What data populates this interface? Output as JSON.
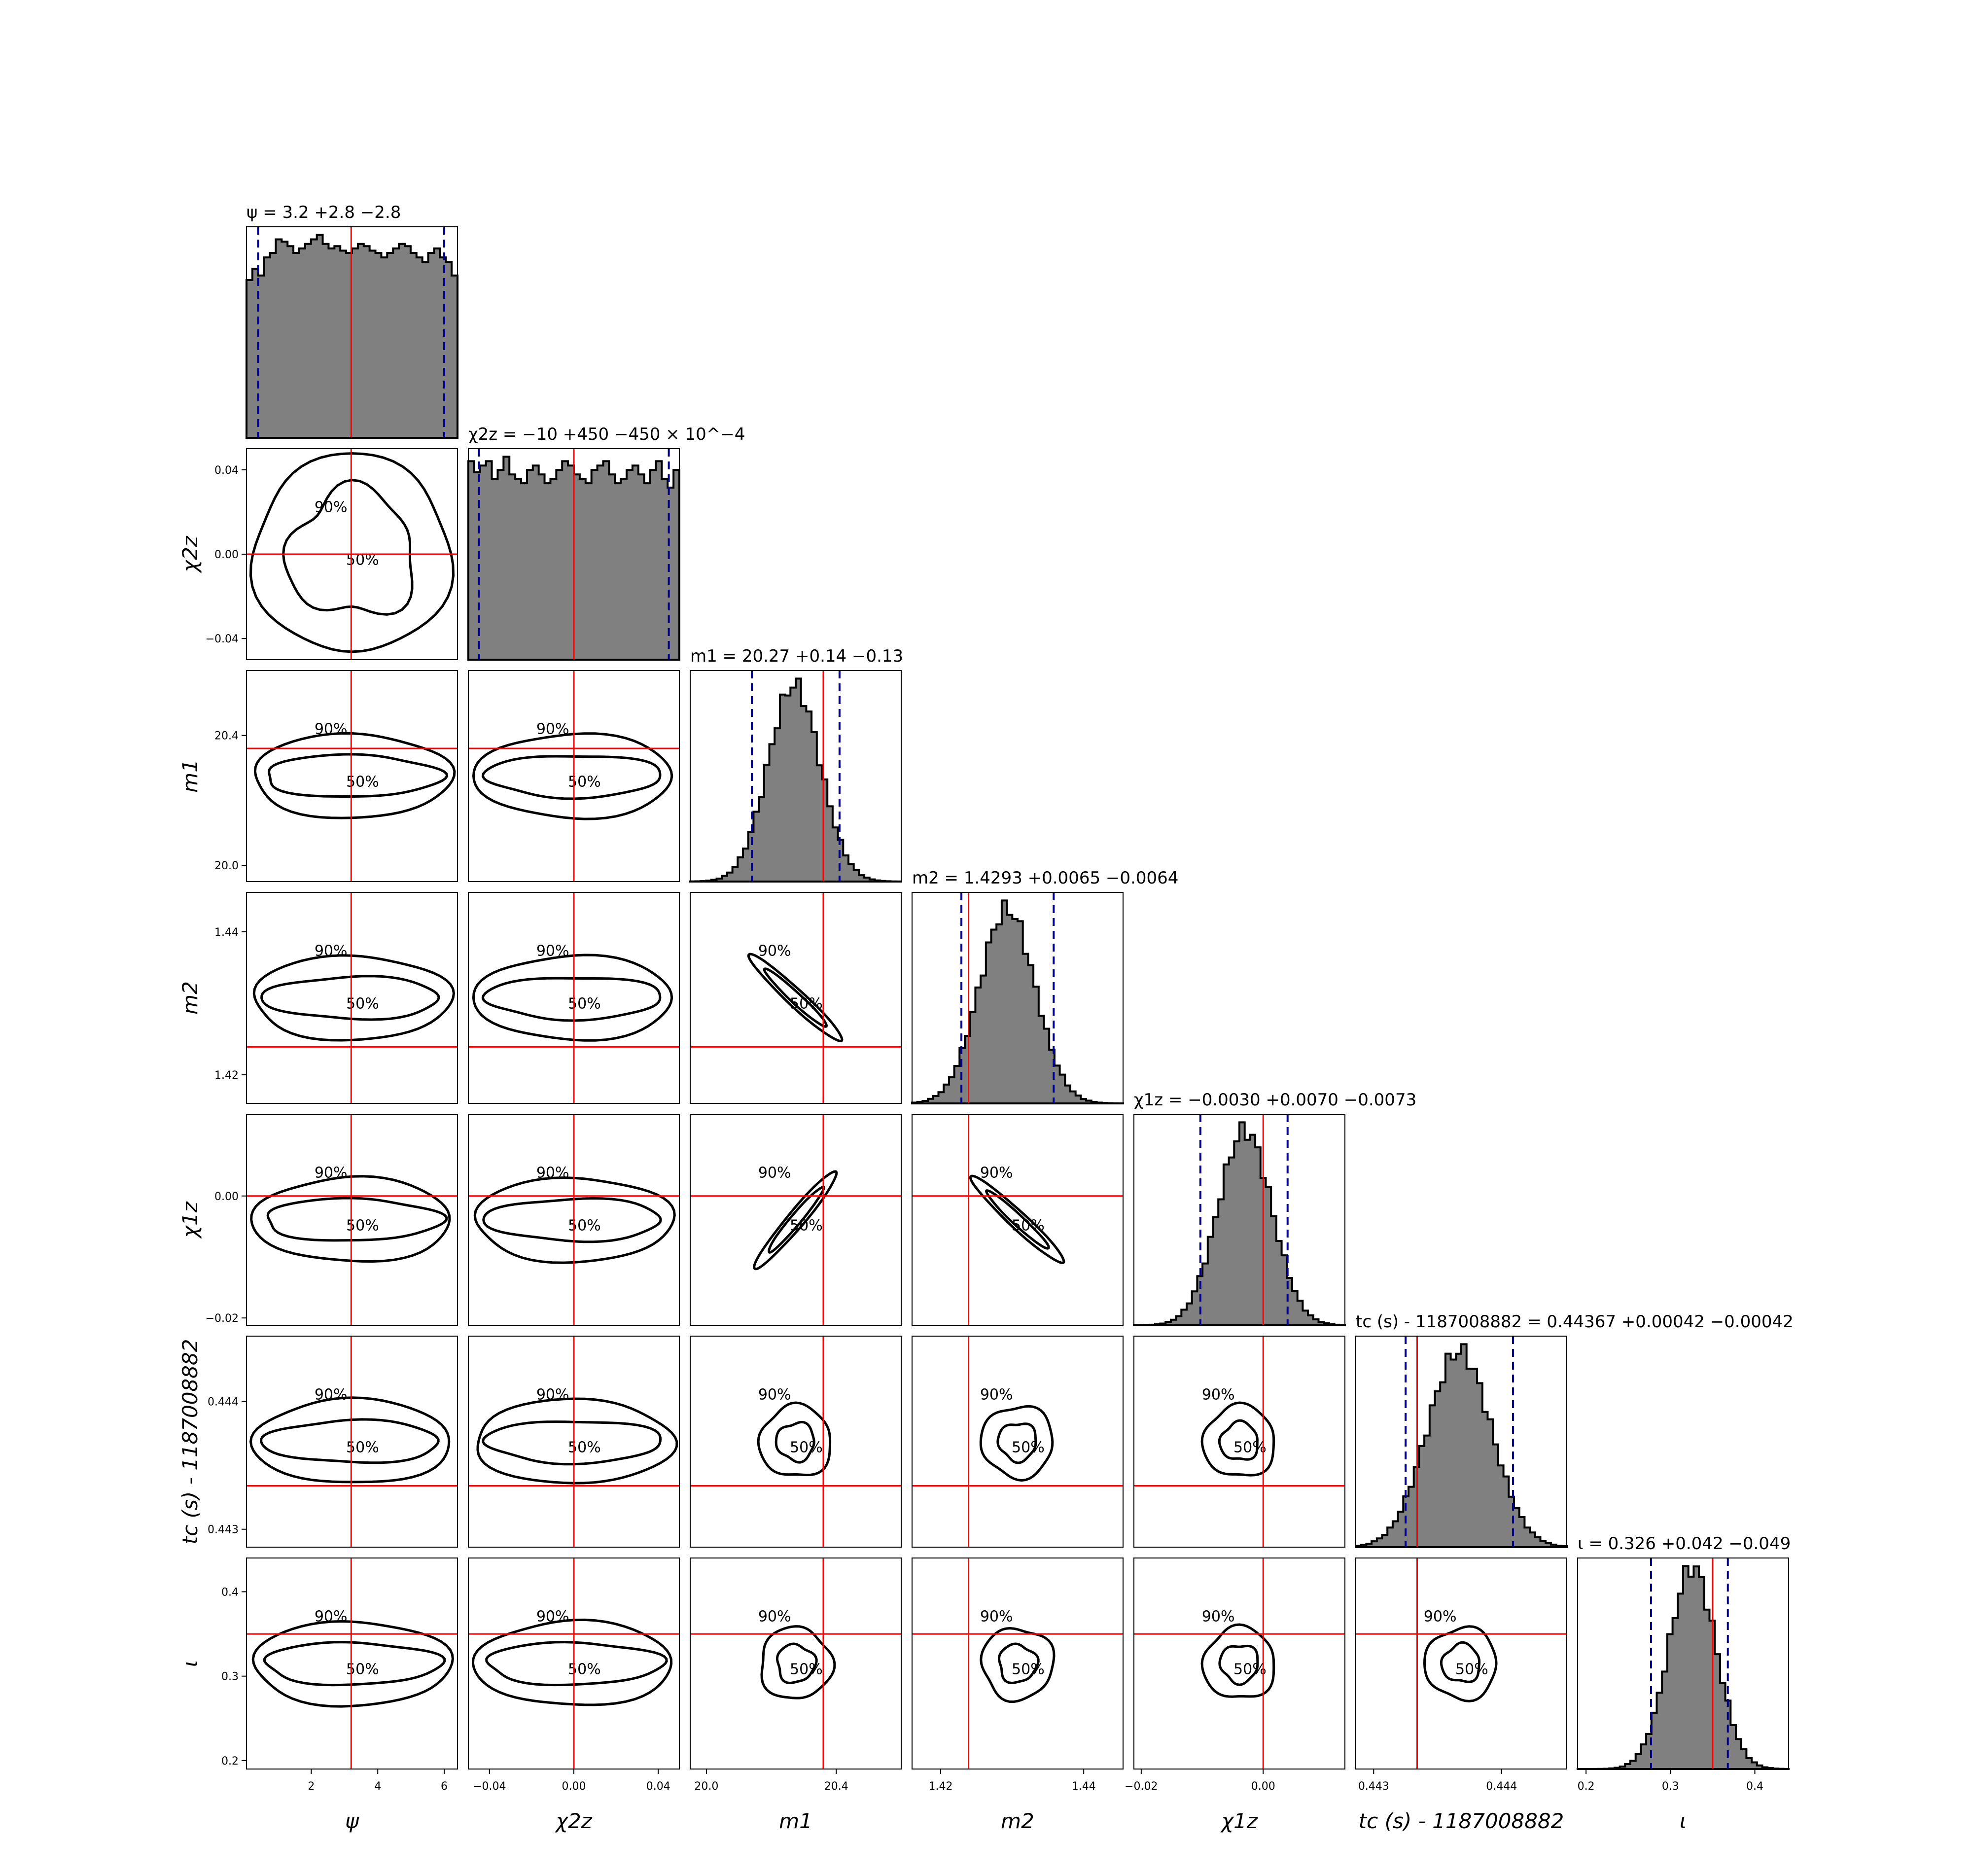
{
  "chart_data": {
    "type": "corner",
    "parameters": [
      {
        "key": "psi",
        "label": "ψ",
        "title": "ψ = 3.2 +2.8 −2.8",
        "range": [
          0.05,
          6.4
        ],
        "ticks": [
          2,
          4,
          6
        ],
        "tick_labels": [
          "2",
          "4",
          "6"
        ],
        "median": 3.2,
        "lo": 0.4,
        "hi": 6.0,
        "truth": 3.2,
        "hist": [
          0.7,
          0.75,
          0.72,
          0.8,
          0.82,
          0.88,
          0.87,
          0.85,
          0.82,
          0.84,
          0.86,
          0.88,
          0.9,
          0.86,
          0.84,
          0.85,
          0.83,
          0.82,
          0.84,
          0.86,
          0.85,
          0.83,
          0.82,
          0.8,
          0.82,
          0.84,
          0.86,
          0.85,
          0.82,
          0.8,
          0.78,
          0.82,
          0.84,
          0.8,
          0.78,
          0.72
        ]
      },
      {
        "key": "chi2z",
        "label": "χ2z",
        "title": "χ2z = −10 +450 −450 × 10^−4",
        "range": [
          -0.05,
          0.05
        ],
        "ticks": [
          -0.04,
          0.0,
          0.04
        ],
        "tick_labels": [
          "−0.04",
          "0.00",
          "0.04"
        ],
        "median": 0.0,
        "lo": -0.045,
        "hi": 0.045,
        "truth": 0.0,
        "hist": [
          0.9,
          0.85,
          0.88,
          0.9,
          0.82,
          0.86,
          0.92,
          0.84,
          0.82,
          0.8,
          0.86,
          0.88,
          0.84,
          0.8,
          0.82,
          0.86,
          0.9,
          0.88,
          0.84,
          0.82,
          0.8,
          0.86,
          0.88,
          0.9,
          0.84,
          0.8,
          0.82,
          0.86,
          0.88,
          0.84,
          0.8,
          0.86,
          0.9,
          0.82,
          0.78,
          0.86
        ]
      },
      {
        "key": "m1",
        "label": "m1",
        "title": "m1 = 20.27 +0.14 −0.13",
        "range": [
          19.95,
          20.6
        ],
        "ticks": [
          20.0,
          20.4
        ],
        "tick_labels": [
          "20.0",
          "20.4"
        ],
        "median": 20.27,
        "lo": 20.14,
        "hi": 20.41,
        "truth": 20.36,
        "mu": 20.27,
        "sd": 0.08
      },
      {
        "key": "m2",
        "label": "m2",
        "title": "m2 = 1.4293 +0.0065 −0.0064",
        "range": [
          1.416,
          1.4455
        ],
        "ticks": [
          1.42,
          1.44
        ],
        "tick_labels": [
          "1.42",
          "1.44"
        ],
        "median": 1.4293,
        "lo": 1.4229,
        "hi": 1.4358,
        "truth": 1.4239,
        "mu": 1.4293,
        "sd": 0.0039
      },
      {
        "key": "chi1z",
        "label": "χ1z",
        "title": "χ1z = −0.0030 +0.0070 −0.0073",
        "range": [
          -0.0212,
          0.0134
        ],
        "ticks": [
          -0.02,
          0.0
        ],
        "tick_labels": [
          "−0.02",
          "0.00"
        ],
        "median": -0.003,
        "lo": -0.0103,
        "hi": 0.004,
        "truth": 0.0,
        "mu": -0.003,
        "sd": 0.0044
      },
      {
        "key": "tc",
        "label": "tc (s) - 1187008882",
        "title": "tc (s) - 1187008882 = 0.44367 +0.00042 −0.00042",
        "range": [
          0.44286,
          0.44451
        ],
        "ticks": [
          0.443,
          0.444
        ],
        "tick_labels": [
          "0.443",
          "0.444"
        ],
        "median": 0.44367,
        "lo": 0.44325,
        "hi": 0.44409,
        "truth": 0.44334,
        "mu": 0.44367,
        "sd": 0.00025
      },
      {
        "key": "iota",
        "label": "ι",
        "title": "ι = 0.326 +0.042 −0.049",
        "range": [
          0.19,
          0.44
        ],
        "ticks": [
          0.2,
          0.3,
          0.4
        ],
        "tick_labels": [
          "0.2",
          "0.3",
          "0.4"
        ],
        "median": 0.326,
        "lo": 0.277,
        "hi": 0.368,
        "truth": 0.35,
        "mu": 0.326,
        "sd": 0.028
      }
    ],
    "contour_levels": [
      "50%",
      "90%"
    ],
    "truth_color": "#ff0000",
    "quantile_color": "#00008b",
    "hist_fill": "#808080",
    "contour_color": "#000000"
  }
}
